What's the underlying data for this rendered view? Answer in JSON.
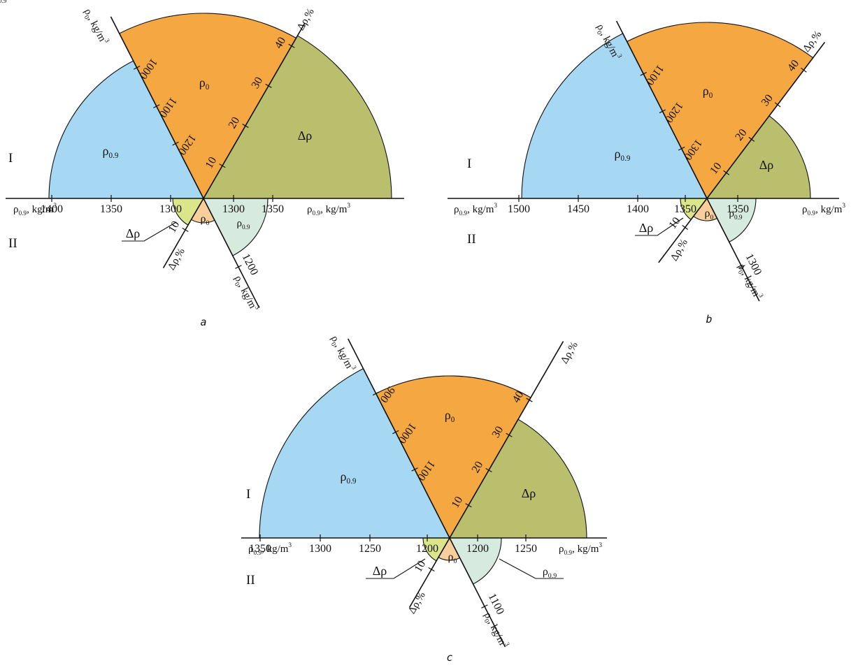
{
  "colors": {
    "rho09_main": "#a6d8f4",
    "rho0_main": "#f5a742",
    "delta_main": "#b9bf6c",
    "delta_small": "#dbe58a",
    "rho0_small": "#f8cf9a",
    "rho09_small": "#d7eadf"
  },
  "panels": [
    {
      "caption": "a",
      "region_upper": "I",
      "region_lower": "II",
      "sector_labels": {
        "rho09": "ρ0.9",
        "rho0": "ρ0",
        "delta": "Δρ",
        "small_rho0": "ρ0",
        "small_rho09": "ρ0.9",
        "callout_delta": "Δρ"
      },
      "axis_labels": {
        "rho0_top": "ρ0, kg/m3",
        "delta_top": "Δρ,%",
        "rho09_left": "ρ0.9, kg/m3",
        "rho09_right": "ρ0.9, kg/m3",
        "delta_bottom": "Δρ,%",
        "rho0_bottom": "ρ0, kg/m3"
      },
      "ticks": {
        "left_x": [
          "1400",
          "1350",
          "1300"
        ],
        "right_x": [
          "1300",
          "1350"
        ],
        "upper_left_diag": [
          "1000",
          "1100",
          "1200"
        ],
        "upper_right_diag": [
          "10",
          "20",
          "30",
          "40"
        ],
        "lower_left_diag": [
          "10"
        ],
        "lower_right_diag": [
          "1200"
        ]
      }
    },
    {
      "caption": "b",
      "region_upper": "I",
      "region_lower": "II",
      "sector_labels": {
        "rho09": "ρ0.9",
        "rho0": "ρ0",
        "delta": "Δρ",
        "small_rho0": "ρ0",
        "small_rho09": "ρ0.9",
        "callout_delta": "Δρ"
      },
      "axis_labels": {
        "rho0_top": "ρ0, kg/m3",
        "delta_top": "Δρ,%",
        "rho09_left": "ρ0.9, kg/m3",
        "rho09_right": "ρ0.9, kg/m3",
        "delta_bottom": "Δρ,%",
        "rho0_bottom": "ρ0, kg/m3"
      },
      "ticks": {
        "left_x": [
          "1500",
          "1450",
          "1400",
          "1350"
        ],
        "right_x": [
          "1350"
        ],
        "upper_left_diag": [
          "1100",
          "1200",
          "1300"
        ],
        "upper_right_diag": [
          "10",
          "20",
          "30",
          "40"
        ],
        "lower_left_diag": [
          "10"
        ],
        "lower_right_diag": [
          "1300"
        ]
      }
    },
    {
      "caption": "c",
      "region_upper": "I",
      "region_lower": "II",
      "sector_labels": {
        "rho09": "ρ0.9",
        "rho0": "ρ0",
        "delta": "Δρ",
        "small_rho0": "ρ0",
        "small_rho09": "ρ0.9",
        "callout_delta": "Δρ"
      },
      "axis_labels": {
        "rho0_top": "ρ0, kg/m3",
        "delta_top": "Δρ,%",
        "rho09_left": "ρ0.9, kg/m3",
        "rho09_right": "ρ0.9, kg/m3",
        "delta_bottom": "Δρ,%",
        "rho0_bottom": "ρ0, kg/m3"
      },
      "ticks": {
        "left_x": [
          "1350",
          "1300",
          "1250",
          "1200"
        ],
        "right_x": [
          "1200",
          "1250"
        ],
        "upper_left_diag": [
          "900",
          "1000",
          "1100"
        ],
        "upper_right_diag": [
          "10",
          "20",
          "30",
          "40"
        ],
        "lower_left_diag": [
          "10"
        ],
        "lower_right_diag": [
          "1100"
        ]
      }
    }
  ]
}
